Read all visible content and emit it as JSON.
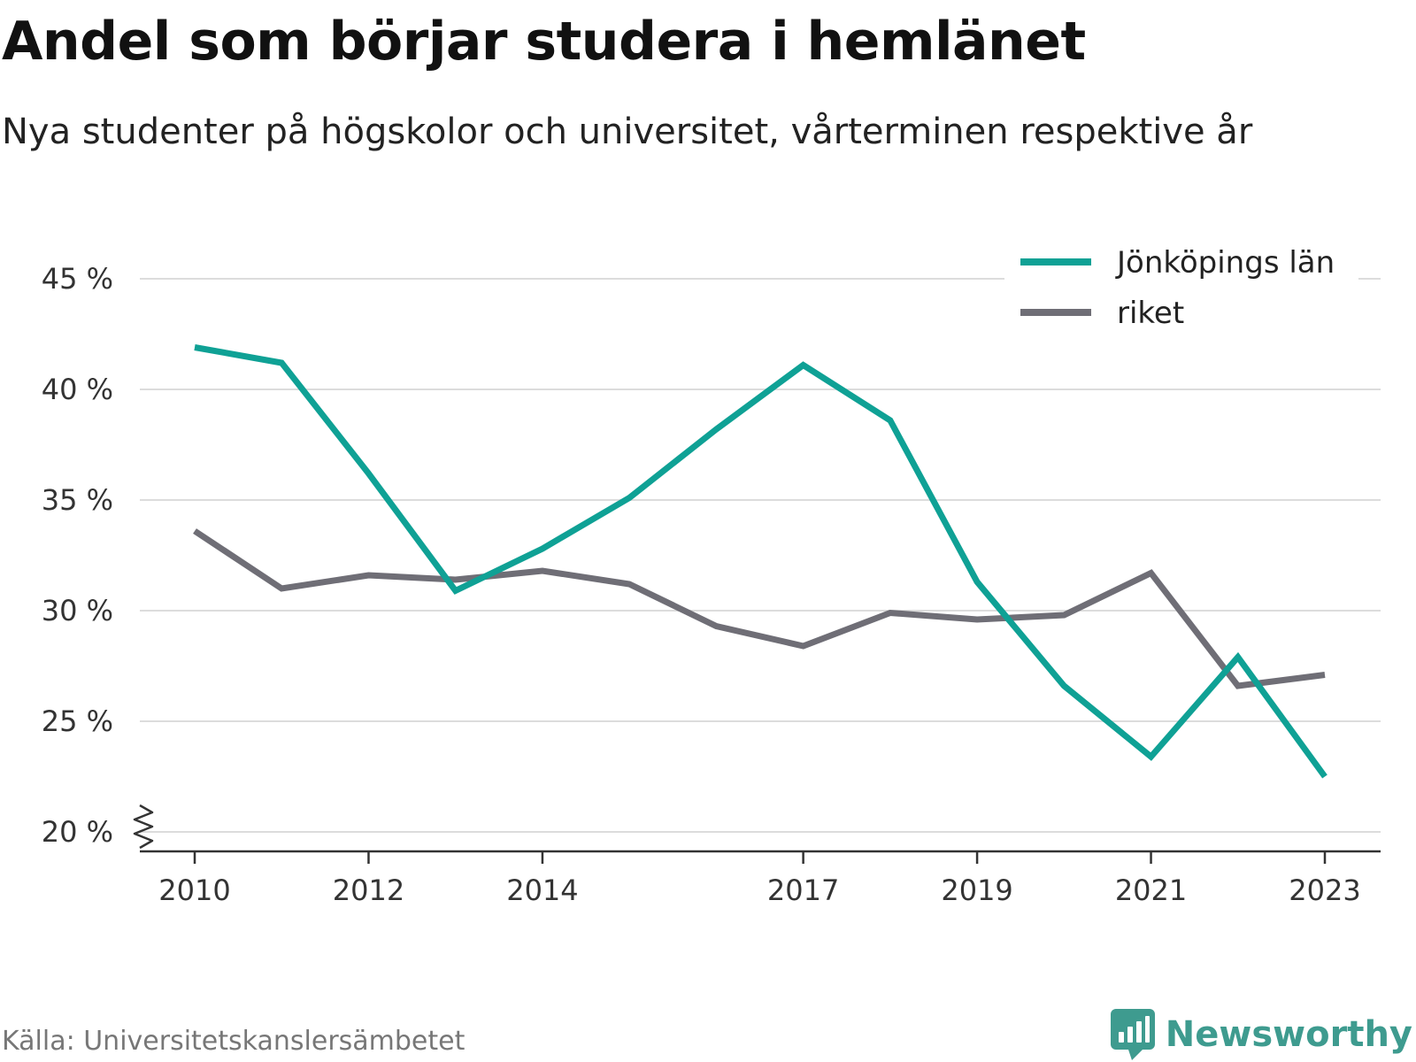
{
  "header": {
    "title": "Andel som börjar studera i hemlänet",
    "subtitle": "Nya studenter på högskolor och universitet, vårterminen respektive år"
  },
  "footer": {
    "source": "Källa: Universitetskanslersämbetet",
    "brand": "Newsworthy",
    "brand_icon": "bar-chart-speech-bubble-icon",
    "brand_color": "#3e9b8f"
  },
  "chart_data": {
    "type": "line",
    "title": "Andel som börjar studera i hemlänet",
    "subtitle": "Nya studenter på högskolor och universitet, vårterminen respektive år",
    "xlabel": "",
    "ylabel": "",
    "x": [
      2010,
      2011,
      2012,
      2013,
      2014,
      2015,
      2016,
      2017,
      2018,
      2019,
      2020,
      2021,
      2022,
      2023
    ],
    "x_ticks": [
      2010,
      2012,
      2014,
      2017,
      2019,
      2021,
      2023
    ],
    "y_ticks": [
      20,
      25,
      30,
      35,
      40,
      45
    ],
    "y_tick_suffix": " %",
    "ylim": [
      20,
      45
    ],
    "y_axis_break": true,
    "grid": "horizontal",
    "legend_position": "top-right",
    "series": [
      {
        "name": "Jönköpings län",
        "color": "#0fa195",
        "values": [
          41.9,
          41.2,
          36.2,
          30.9,
          32.8,
          35.1,
          38.2,
          41.1,
          38.6,
          31.3,
          26.6,
          23.4,
          27.9,
          22.5
        ]
      },
      {
        "name": "riket",
        "color": "#6f6e76",
        "values": [
          33.6,
          31.0,
          31.6,
          31.4,
          31.8,
          31.2,
          29.3,
          28.4,
          29.9,
          29.6,
          29.8,
          31.7,
          26.6,
          27.1
        ]
      }
    ]
  }
}
